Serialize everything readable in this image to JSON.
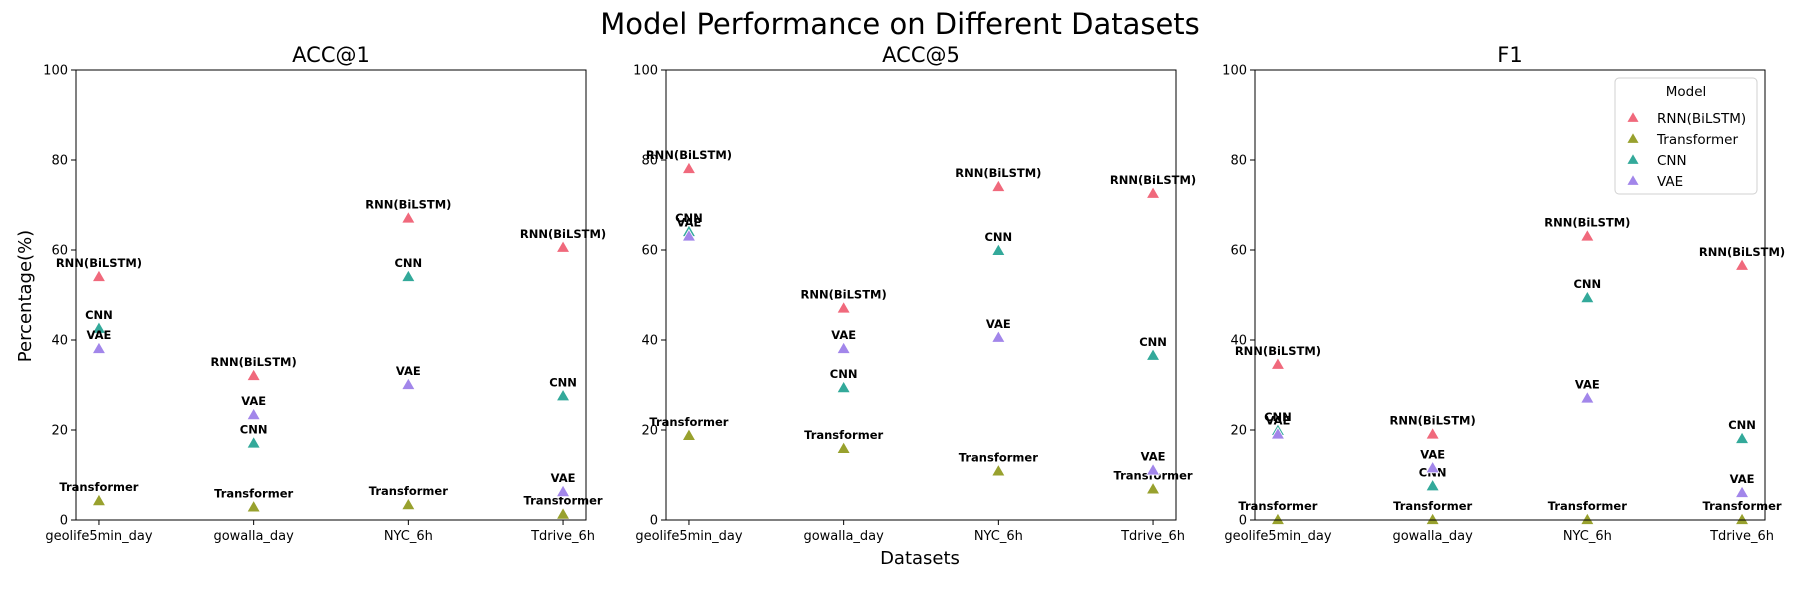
{
  "chart_data": {
    "type": "scatter",
    "title": "Model Performance on Different Datasets",
    "xlabel": "Datasets",
    "ylabel": "Percentage(%)",
    "ylim": [
      0,
      100
    ],
    "yticks": [
      0,
      20,
      40,
      60,
      80,
      100
    ],
    "categories": [
      "geolife5min_day",
      "gowalla_day",
      "NYC_6h",
      "Tdrive_6h"
    ],
    "marker": "triangle",
    "legend": {
      "title": "Model",
      "placement": "top-right",
      "panel": "F1"
    },
    "series_styles": [
      {
        "name": "RNN(BiLSTM)",
        "color": "#f0697c"
      },
      {
        "name": "Transformer",
        "color": "#98a12e"
      },
      {
        "name": "CNN",
        "color": "#33a99a"
      },
      {
        "name": "VAE",
        "color": "#a286ea"
      }
    ],
    "panels": [
      {
        "title": "ACC@1",
        "series": [
          {
            "name": "RNN(BiLSTM)",
            "values": [
              54,
              32,
              67,
              60.5
            ]
          },
          {
            "name": "Transformer",
            "values": [
              4.2,
              2.8,
              3.3,
              1.2
            ]
          },
          {
            "name": "CNN",
            "values": [
              42.5,
              17,
              54,
              27.5
            ]
          },
          {
            "name": "VAE",
            "values": [
              38,
              23.3,
              30,
              6.2
            ]
          }
        ]
      },
      {
        "title": "ACC@5",
        "series": [
          {
            "name": "RNN(BiLSTM)",
            "values": [
              78,
              47,
              74,
              72.5
            ]
          },
          {
            "name": "Transformer",
            "values": [
              18.7,
              15.8,
              10.8,
              6.8
            ]
          },
          {
            "name": "CNN",
            "values": [
              64,
              29.3,
              59.8,
              36.5
            ]
          },
          {
            "name": "VAE",
            "values": [
              63,
              38,
              40.5,
              11
            ]
          }
        ]
      },
      {
        "title": "F1",
        "series": [
          {
            "name": "RNN(BiLSTM)",
            "values": [
              34.5,
              19,
              63,
              56.5
            ]
          },
          {
            "name": "Transformer",
            "values": [
              0,
              0,
              0,
              0
            ]
          },
          {
            "name": "CNN",
            "values": [
              19.8,
              7.5,
              49.3,
              18
            ]
          },
          {
            "name": "VAE",
            "values": [
              19,
              11.5,
              27,
              6
            ]
          }
        ]
      }
    ]
  }
}
